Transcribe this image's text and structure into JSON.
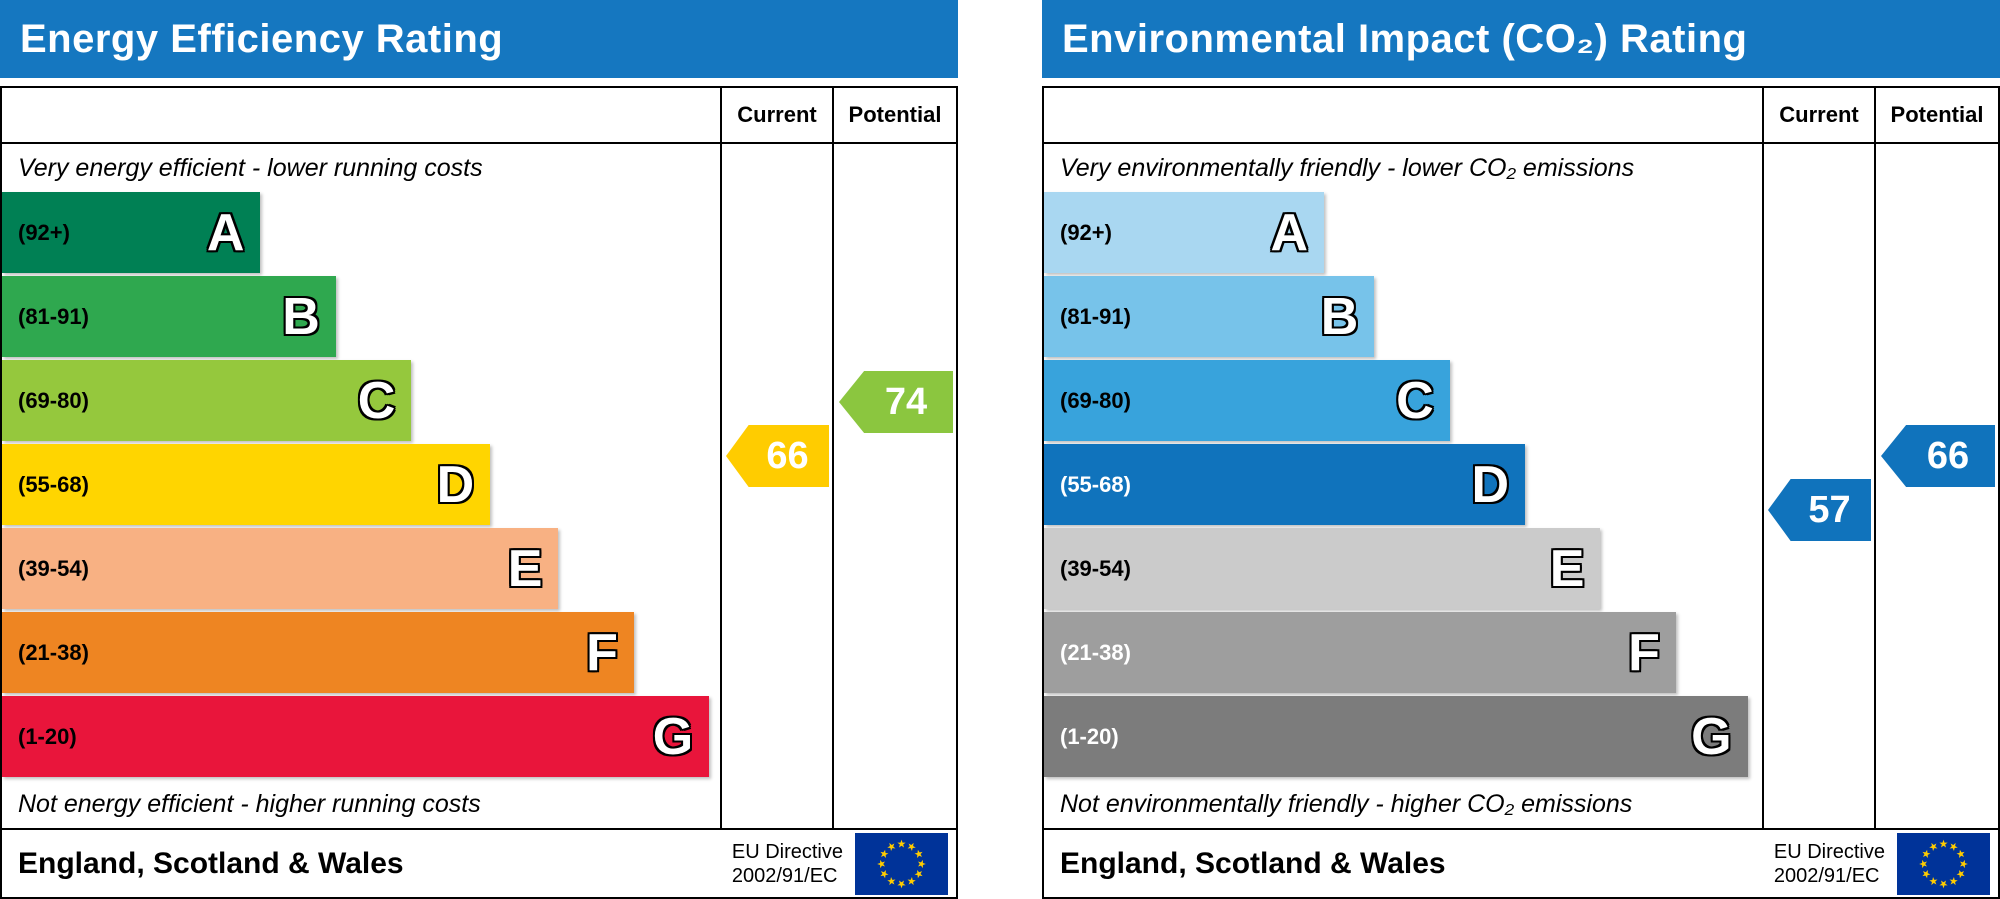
{
  "eu_flag": {
    "background": "#003399",
    "star_color": "#ffcc00"
  },
  "chart_data": [
    {
      "type": "bar",
      "chart_id": "energy-efficiency-rating",
      "title": "Energy Efficiency Rating",
      "header_color": "#1577c0",
      "column_headers": [
        "Current",
        "Potential"
      ],
      "top_note": "Very energy efficient - lower running costs",
      "bottom_note": "Not energy efficient - higher running costs",
      "footer": "England, Scotland & Wales",
      "directive": [
        "EU Directive",
        "2002/91/EC"
      ],
      "ylim": [
        1,
        100
      ],
      "bands": [
        {
          "letter": "A",
          "range_label": "(92+)",
          "min": 92,
          "max": 100,
          "color": "#008054",
          "width_pct": 36,
          "label_color": "#000000"
        },
        {
          "letter": "B",
          "range_label": "(81-91)",
          "min": 81,
          "max": 91,
          "color": "#2fa84f",
          "width_pct": 46.5,
          "label_color": "#000000"
        },
        {
          "letter": "C",
          "range_label": "(69-80)",
          "min": 69,
          "max": 80,
          "color": "#95c83d",
          "width_pct": 57,
          "label_color": "#000000"
        },
        {
          "letter": "D",
          "range_label": "(55-68)",
          "min": 55,
          "max": 68,
          "color": "#ffd500",
          "width_pct": 68,
          "label_color": "#000000"
        },
        {
          "letter": "E",
          "range_label": "(39-54)",
          "min": 39,
          "max": 54,
          "color": "#f8b183",
          "width_pct": 77.5,
          "label_color": "#000000"
        },
        {
          "letter": "F",
          "range_label": "(21-38)",
          "min": 21,
          "max": 38,
          "color": "#ee8522",
          "width_pct": 88,
          "label_color": "#000000"
        },
        {
          "letter": "G",
          "range_label": "(1-20)",
          "min": 1,
          "max": 20,
          "color": "#e9153b",
          "width_pct": 98.5,
          "label_color": "#000000"
        }
      ],
      "current": {
        "label": "66",
        "value": 66,
        "color": "#ffcc00"
      },
      "potential": {
        "label": "74",
        "value": 74,
        "color": "#8bc63f"
      }
    },
    {
      "type": "bar",
      "chart_id": "environmental-impact-co2-rating",
      "title": "Environmental Impact (CO₂) Rating",
      "header_color": "#1577c0",
      "column_headers": [
        "Current",
        "Potential"
      ],
      "top_note": "Very environmentally friendly - lower CO₂ emissions",
      "bottom_note": "Not environmentally friendly - higher CO₂ emissions",
      "footer": "England, Scotland & Wales",
      "directive": [
        "EU Directive",
        "2002/91/EC"
      ],
      "ylim": [
        1,
        100
      ],
      "bands": [
        {
          "letter": "A",
          "range_label": "(92+)",
          "min": 92,
          "max": 100,
          "color": "#a9d7f1",
          "width_pct": 39,
          "label_color": "#000000"
        },
        {
          "letter": "B",
          "range_label": "(81-91)",
          "min": 81,
          "max": 91,
          "color": "#77c3ea",
          "width_pct": 46,
          "label_color": "#000000"
        },
        {
          "letter": "C",
          "range_label": "(69-80)",
          "min": 69,
          "max": 80,
          "color": "#38a3dc",
          "width_pct": 56.5,
          "label_color": "#000000"
        },
        {
          "letter": "D",
          "range_label": "(55-68)",
          "min": 55,
          "max": 68,
          "color": "#1073bc",
          "width_pct": 67,
          "label_color": "#ffffff"
        },
        {
          "letter": "E",
          "range_label": "(39-54)",
          "min": 39,
          "max": 54,
          "color": "#cbcbcb",
          "width_pct": 77.5,
          "label_color": "#000000"
        },
        {
          "letter": "F",
          "range_label": "(21-38)",
          "min": 21,
          "max": 38,
          "color": "#9e9e9e",
          "width_pct": 88,
          "label_color": "#ffffff"
        },
        {
          "letter": "G",
          "range_label": "(1-20)",
          "min": 1,
          "max": 20,
          "color": "#7c7c7c",
          "width_pct": 98,
          "label_color": "#ffffff"
        }
      ],
      "current": {
        "label": "57",
        "value": 57,
        "color": "#1073bc"
      },
      "potential": {
        "label": "66",
        "value": 66,
        "color": "#1073bc"
      }
    }
  ]
}
